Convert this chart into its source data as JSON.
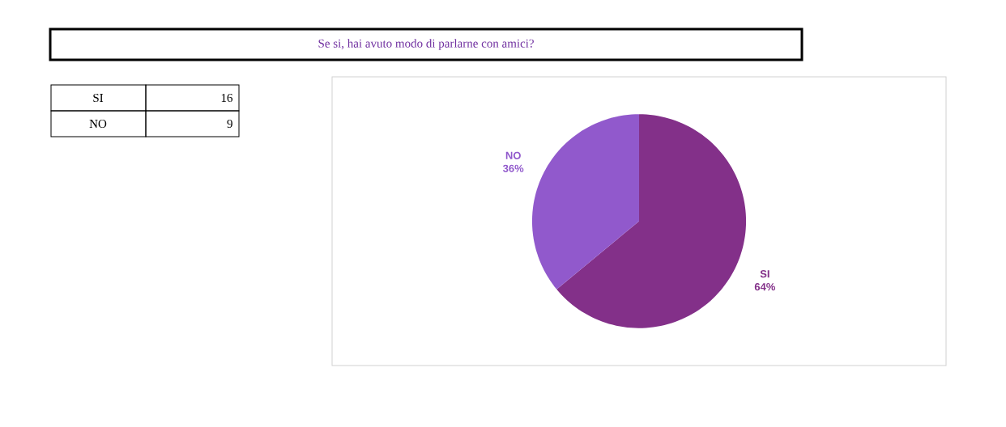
{
  "chart_data": {
    "type": "pie",
    "title": "Se si, hai avuto modo di parlarne con amici?",
    "categories": [
      "SI",
      "NO"
    ],
    "values": [
      64,
      36
    ],
    "colors": [
      "#833089",
      "#9159cc"
    ],
    "value_labels": [
      "64%",
      "36%"
    ],
    "annotations": [
      "16",
      "9"
    ]
  }
}
